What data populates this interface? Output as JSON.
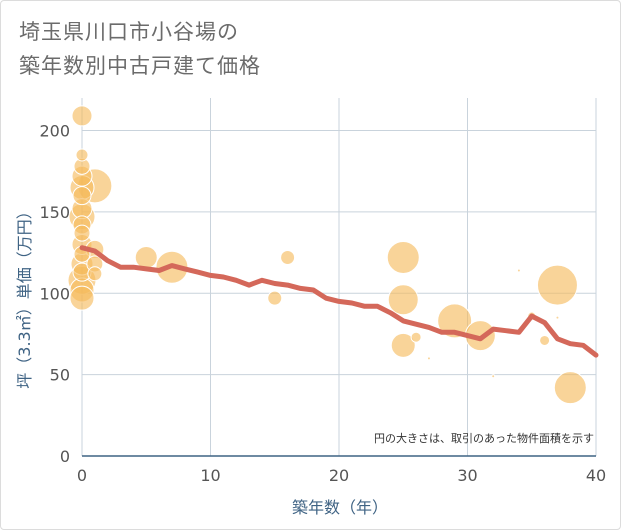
{
  "title_lines": [
    "埼玉県川口市小谷場の",
    "築年数別中古戸建て価格"
  ],
  "note": "円の大きさは、取引のあった物件面積を示す",
  "colors": {
    "bubble": "#f5b95a",
    "bubble_edge": "#ffffff",
    "line": "#d4685a",
    "grid": "#c9d3dc",
    "axis": "#3f6384"
  },
  "chart_data": {
    "type": "scatter",
    "xlabel": "築年数（年）",
    "ylabel": "坪（3.3㎡）単価（万円）",
    "xlim": [
      0,
      40
    ],
    "ylim": [
      0,
      220
    ],
    "xticks": [
      "0",
      "10",
      "20",
      "30",
      "40"
    ],
    "yticks": [
      "0",
      "50",
      "100",
      "150",
      "200"
    ],
    "x_tick_values": [
      0,
      10,
      20,
      30,
      40
    ],
    "y_tick_values": [
      0,
      50,
      100,
      150,
      200
    ],
    "grid": true,
    "bubbles": [
      {
        "x": 0,
        "y": 209,
        "r": 10
      },
      {
        "x": 0,
        "y": 185,
        "r": 6
      },
      {
        "x": 0,
        "y": 178,
        "r": 8
      },
      {
        "x": 0,
        "y": 172,
        "r": 10
      },
      {
        "x": 0,
        "y": 165,
        "r": 12
      },
      {
        "x": 0,
        "y": 160,
        "r": 9
      },
      {
        "x": 0,
        "y": 152,
        "r": 10
      },
      {
        "x": 0,
        "y": 147,
        "r": 13
      },
      {
        "x": 0,
        "y": 142,
        "r": 9
      },
      {
        "x": 0,
        "y": 137,
        "r": 8
      },
      {
        "x": 0,
        "y": 130,
        "r": 10
      },
      {
        "x": 0,
        "y": 124,
        "r": 8
      },
      {
        "x": 0,
        "y": 118,
        "r": 11
      },
      {
        "x": 0,
        "y": 113,
        "r": 9
      },
      {
        "x": 0,
        "y": 108,
        "r": 14
      },
      {
        "x": 0,
        "y": 102,
        "r": 12
      },
      {
        "x": 0,
        "y": 97,
        "r": 12
      },
      {
        "x": 1,
        "y": 166,
        "r": 17
      },
      {
        "x": 1,
        "y": 127,
        "r": 9
      },
      {
        "x": 1,
        "y": 118,
        "r": 8
      },
      {
        "x": 1,
        "y": 112,
        "r": 7
      },
      {
        "x": 5,
        "y": 122,
        "r": 11
      },
      {
        "x": 7,
        "y": 116,
        "r": 16
      },
      {
        "x": 15,
        "y": 97,
        "r": 7
      },
      {
        "x": 16,
        "y": 122,
        "r": 7
      },
      {
        "x": 25,
        "y": 122,
        "r": 16
      },
      {
        "x": 25,
        "y": 96,
        "r": 15
      },
      {
        "x": 25,
        "y": 68,
        "r": 12
      },
      {
        "x": 26,
        "y": 73,
        "r": 5
      },
      {
        "x": 27,
        "y": 60,
        "r": 1.5
      },
      {
        "x": 29,
        "y": 83,
        "r": 17
      },
      {
        "x": 31,
        "y": 74,
        "r": 15
      },
      {
        "x": 32,
        "y": 49,
        "r": 1.5
      },
      {
        "x": 34,
        "y": 114,
        "r": 1.5
      },
      {
        "x": 35,
        "y": 86,
        "r": 4
      },
      {
        "x": 36,
        "y": 71,
        "r": 5
      },
      {
        "x": 37,
        "y": 105,
        "r": 20
      },
      {
        "x": 37,
        "y": 85,
        "r": 1.5
      },
      {
        "x": 38,
        "y": 42,
        "r": 16
      }
    ],
    "trend_line": {
      "x": [
        0,
        1,
        2,
        3,
        4,
        5,
        6,
        7,
        8,
        9,
        10,
        11,
        12,
        13,
        14,
        15,
        16,
        17,
        18,
        19,
        20,
        21,
        22,
        23,
        24,
        25,
        26,
        27,
        28,
        29,
        30,
        31,
        32,
        33,
        34,
        35,
        36,
        37,
        38,
        39,
        40
      ],
      "y": [
        128,
        126,
        120,
        116,
        116,
        115,
        114,
        117,
        115,
        113,
        111,
        110,
        108,
        105,
        108,
        106,
        105,
        103,
        102,
        97,
        95,
        94,
        92,
        92,
        88,
        83,
        81,
        79,
        76,
        76,
        74,
        72,
        78,
        77,
        76,
        86,
        82,
        72,
        69,
        68,
        62
      ]
    }
  }
}
